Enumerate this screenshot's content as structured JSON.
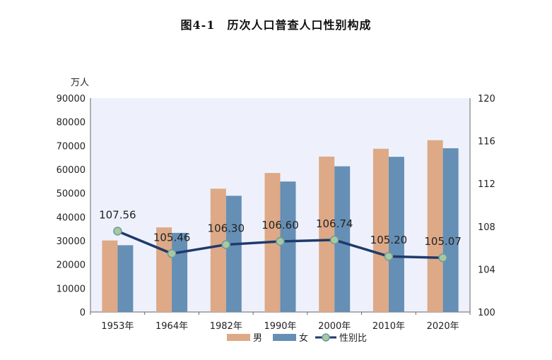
{
  "chart_data": {
    "type": "bar+line",
    "title": "图4-1　历次人口普查人口性别构成",
    "y_left_unit": "万人",
    "categories": [
      "1953年",
      "1964年",
      "1982年",
      "1990年",
      "2000年",
      "2010年",
      "2020年"
    ],
    "series": [
      {
        "name": "男",
        "kind": "bar",
        "axis": "left",
        "color": "#dea986",
        "values": [
          30100,
          35600,
          51900,
          58500,
          65400,
          68700,
          72300
        ]
      },
      {
        "name": "女",
        "kind": "bar",
        "axis": "left",
        "color": "#658fb5",
        "values": [
          28100,
          33300,
          48900,
          54900,
          61300,
          65300,
          68900
        ]
      },
      {
        "name": "性别比",
        "kind": "line",
        "axis": "right",
        "color": "#1f3a6b",
        "marker_color": "#a8c8a0",
        "values": [
          107.56,
          105.46,
          106.3,
          106.6,
          106.74,
          105.2,
          105.07
        ],
        "labels": [
          "107.56",
          "105.46",
          "106.30",
          "106.60",
          "106.74",
          "105.20",
          "105.07"
        ]
      }
    ],
    "y_left": {
      "min": 0,
      "max": 90000,
      "ticks": [
        "0",
        "10000",
        "20000",
        "30000",
        "40000",
        "50000",
        "60000",
        "70000",
        "80000",
        "90000"
      ]
    },
    "y_right": {
      "min": 100,
      "max": 120,
      "ticks": [
        "100",
        "104",
        "108",
        "112",
        "116",
        "120"
      ]
    },
    "legend_position": "bottom",
    "grid": false
  }
}
